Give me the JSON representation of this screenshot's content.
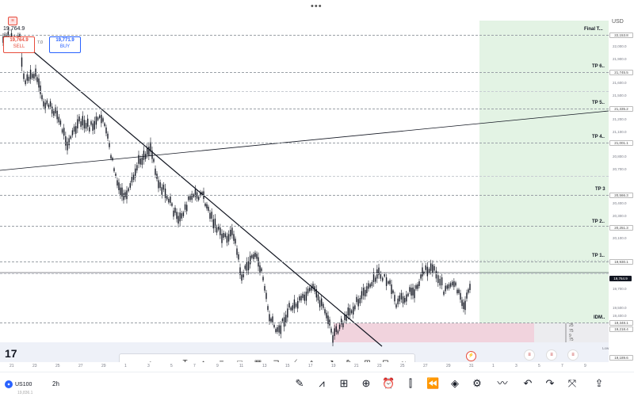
{
  "top": {
    "menu_dots": "•••",
    "currency": "USD"
  },
  "trade": {
    "last_price": "19,764.9",
    "sell_price": "19,764.9",
    "sell_label": "SELL",
    "buy_price": "19,771.9",
    "buy_label": "BUY",
    "spread": "7.0"
  },
  "levels": [
    {
      "label": "Final T...",
      "price": "22,153.8"
    },
    {
      "label": "TP 6..",
      "price": "21,745.5"
    },
    {
      "label": "TP 5..",
      "price": "21,335.2"
    },
    {
      "label": "TP 4..",
      "price": "21,001.1"
    },
    {
      "label": "TP 3",
      "price": "20,566.3"
    },
    {
      "label": "TP 2..",
      "price": "20,251.3"
    },
    {
      "label": "TP 1..",
      "price": "19,930.1"
    },
    {
      "label": "IDM..",
      "price": "19,348.1"
    }
  ],
  "axis_prices": [
    "22,000.0",
    "21,900.0",
    "21,600.0",
    "21,500.0",
    "21,200.0",
    "21,100.0",
    "20,800.0",
    "20,700.0",
    "20,400.0",
    "20,300.0",
    "20,100.0",
    "19,700.0",
    "19,500.0",
    "19,400.0"
  ],
  "current_price_tag": "19,764.9",
  "low_tag": "19,218.4",
  "low_label": "Low",
  "bottom_tag": "19,189.6",
  "ruler": [
    "25",
    "75",
    "9",
    "75"
  ],
  "time_labels": [
    "21",
    "23",
    "25",
    "27",
    "29",
    "1",
    "3",
    "5",
    "7",
    "9",
    "11",
    "13",
    "15",
    "17",
    "19",
    "21",
    "23",
    "25",
    "27",
    "29",
    "31",
    "1",
    "3",
    "5",
    "7",
    "9"
  ],
  "toolbar": {
    "tools": [
      "cursor-icon",
      "line-icon",
      "horizontal-line-icon",
      "text-icon",
      "pin-icon",
      "channel-icon",
      "rectangle-icon",
      "grid-icon",
      "path-icon",
      "trend-icon",
      "polyline-icon",
      "arrow-icon",
      "brush-icon",
      "measure-icon",
      "projection-icon",
      "forecast-icon"
    ]
  },
  "bottom": {
    "symbol": "US100",
    "timeframe": "2h",
    "sub_price": "19,836.1",
    "icons": [
      "pencil-icon",
      "chart-type-icon",
      "layout-icon",
      "add-icon",
      "alarm-icon",
      "candles-icon",
      "replay-icon",
      "layers-icon",
      "settings-sliders-icon",
      "wave-icon",
      "undo-icon",
      "redo-icon",
      "fullscreen-icon",
      "share-icon"
    ]
  }
}
